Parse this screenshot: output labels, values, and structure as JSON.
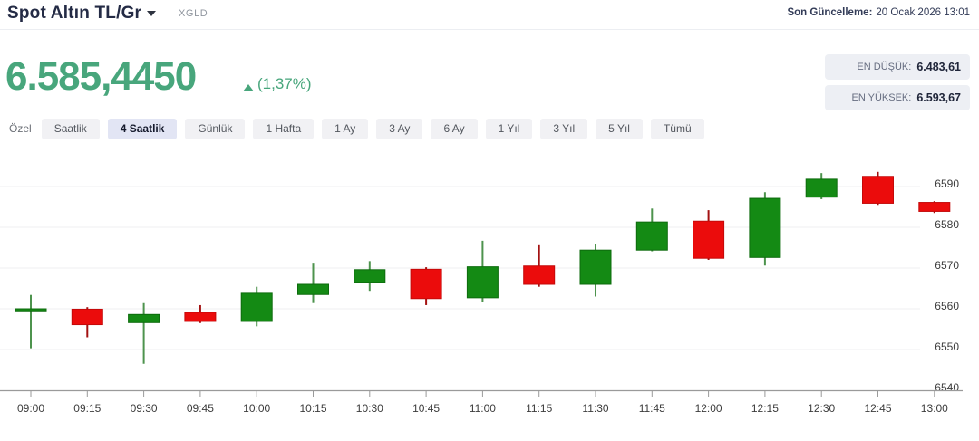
{
  "header": {
    "title": "Spot Altın TL/Gr",
    "symbol": "XGLD",
    "last_update_label": "Son Güncelleme:",
    "last_update_value": "20 Ocak 2026 13:01"
  },
  "quote": {
    "price": "6.585,4450",
    "direction": "up",
    "change_percent": "(1,37%)",
    "low_label": "EN DÜŞÜK:",
    "low_value": "6.483,61",
    "high_label": "EN YÜKSEK:",
    "high_value": "6.593,67"
  },
  "tabs": [
    {
      "label": "Özel",
      "active": false,
      "plain": true
    },
    {
      "label": "Saatlik",
      "active": false
    },
    {
      "label": "4 Saatlik",
      "active": true
    },
    {
      "label": "Günlük",
      "active": false
    },
    {
      "label": "1 Hafta",
      "active": false
    },
    {
      "label": "1 Ay",
      "active": false
    },
    {
      "label": "3 Ay",
      "active": false
    },
    {
      "label": "6 Ay",
      "active": false
    },
    {
      "label": "1 Yıl",
      "active": false
    },
    {
      "label": "3 Yıl",
      "active": false
    },
    {
      "label": "5 Yıl",
      "active": false
    },
    {
      "label": "Tümü",
      "active": false
    }
  ],
  "colors": {
    "accent_green": "#48a67c",
    "candle_up": "#148a14",
    "candle_up_border": "#0d6b0d",
    "candle_up_wick": "#4d934d",
    "candle_down": "#eb0c0c",
    "candle_down_border": "#c40909",
    "candle_down_wick": "#a31111",
    "gridline": "#efeff1",
    "axis": "#9a9a9a",
    "axis_label": "#3c3c3c"
  },
  "chart_data": {
    "type": "candlestick",
    "interval": "15m",
    "ylim": [
      6540,
      6600
    ],
    "yticks": [
      6590,
      6580,
      6570,
      6560,
      6550,
      6540
    ],
    "grid": true,
    "y_axis_side": "right",
    "legend": "none",
    "candles": [
      {
        "t": "09:00",
        "o": 6559.5,
        "h": 6563.4,
        "l": 6550.3,
        "c": 6560.0
      },
      {
        "t": "09:15",
        "o": 6559.9,
        "h": 6560.4,
        "l": 6553.0,
        "c": 6556.1
      },
      {
        "t": "09:30",
        "o": 6556.6,
        "h": 6561.4,
        "l": 6546.5,
        "c": 6558.6
      },
      {
        "t": "09:45",
        "o": 6559.1,
        "h": 6560.9,
        "l": 6556.5,
        "c": 6556.9
      },
      {
        "t": "10:00",
        "o": 6556.9,
        "h": 6565.4,
        "l": 6555.7,
        "c": 6563.8
      },
      {
        "t": "10:15",
        "o": 6563.5,
        "h": 6571.3,
        "l": 6561.4,
        "c": 6566.0
      },
      {
        "t": "10:30",
        "o": 6566.5,
        "h": 6571.7,
        "l": 6564.4,
        "c": 6569.6
      },
      {
        "t": "10:45",
        "o": 6569.7,
        "h": 6570.2,
        "l": 6560.9,
        "c": 6562.5
      },
      {
        "t": "11:00",
        "o": 6562.7,
        "h": 6576.7,
        "l": 6561.6,
        "c": 6570.3
      },
      {
        "t": "11:15",
        "o": 6570.5,
        "h": 6575.6,
        "l": 6565.4,
        "c": 6566.0
      },
      {
        "t": "11:30",
        "o": 6566.0,
        "h": 6575.8,
        "l": 6563.0,
        "c": 6574.4
      },
      {
        "t": "11:45",
        "o": 6574.4,
        "h": 6584.6,
        "l": 6574.1,
        "c": 6581.3
      },
      {
        "t": "12:00",
        "o": 6581.5,
        "h": 6584.2,
        "l": 6572.0,
        "c": 6572.4
      },
      {
        "t": "12:15",
        "o": 6572.6,
        "h": 6588.6,
        "l": 6570.6,
        "c": 6587.1
      },
      {
        "t": "12:30",
        "o": 6587.4,
        "h": 6593.3,
        "l": 6586.9,
        "c": 6591.8
      },
      {
        "t": "12:45",
        "o": 6592.5,
        "h": 6593.6,
        "l": 6585.5,
        "c": 6585.9
      },
      {
        "t": "13:00",
        "o": 6586.1,
        "h": 6586.4,
        "l": 6583.5,
        "c": 6583.9
      }
    ]
  }
}
